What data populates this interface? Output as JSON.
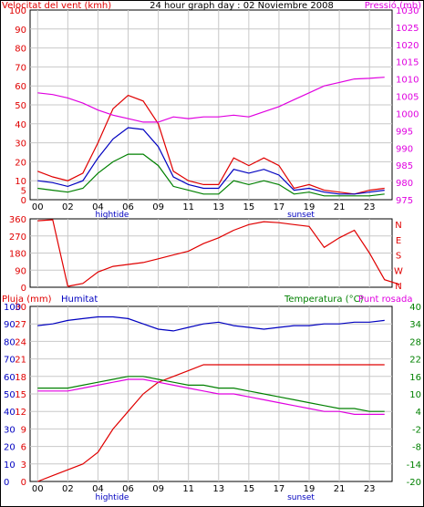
{
  "colors": {
    "red": "#e00000",
    "magenta": "#e000e0",
    "blue": "#0000c0",
    "green": "#008000",
    "grid": "#c8c8c8",
    "axis": "#000000"
  },
  "header": {
    "wind_title": "Velocitat del vent (kmh)",
    "graph_title": "24 hour graph day : 02 Noviembre 2008",
    "pressure_title": "Pressió (mb)"
  },
  "panel3": {
    "rain_title": "Pluja (mm)",
    "humidity_title": "Humitat",
    "temp_title": "Temperatura (°C)",
    "dew_title": "Punt rosada"
  },
  "x_ticks": [
    "00",
    "02",
    "04",
    "06",
    "09",
    "11",
    "13",
    "15",
    "17",
    "19",
    "21",
    "23"
  ],
  "annotations": {
    "hightide": "hightide",
    "sunset": "sunset"
  },
  "chart_data": [
    {
      "type": "line",
      "title": "24 hour graph day : 02 Noviembre 2008",
      "x": [
        0,
        1,
        2,
        3,
        4,
        5,
        6,
        7,
        8,
        9,
        10,
        11,
        12,
        13,
        14,
        15,
        16,
        17,
        18,
        19,
        20,
        21,
        22,
        23
      ],
      "ylabel": "Velocitat del vent (kmh)",
      "ylim": [
        0,
        100
      ],
      "yticks": [
        0,
        5,
        10,
        20,
        30,
        40,
        50,
        60,
        70,
        80,
        90,
        100
      ],
      "y2label": "Pressió (mb)",
      "y2lim": [
        975,
        1030
      ],
      "y2ticks": [
        975,
        980,
        985,
        990,
        995,
        1000,
        1005,
        1010,
        1015,
        1020,
        1025,
        1030
      ],
      "series": [
        {
          "axis": "left",
          "color": "red",
          "values": [
            15,
            12,
            10,
            14,
            30,
            48,
            55,
            52,
            40,
            15,
            10,
            8,
            8,
            22,
            18,
            22,
            18,
            6,
            8,
            5,
            4,
            3,
            5,
            6
          ]
        },
        {
          "axis": "left",
          "color": "blue",
          "values": [
            10,
            9,
            7,
            10,
            22,
            32,
            38,
            37,
            28,
            12,
            8,
            6,
            6,
            16,
            14,
            16,
            13,
            5,
            6,
            4,
            3,
            3,
            4,
            5
          ]
        },
        {
          "axis": "left",
          "color": "green",
          "values": [
            6,
            5,
            4,
            6,
            14,
            20,
            24,
            24,
            18,
            7,
            5,
            3,
            3,
            10,
            8,
            10,
            8,
            3,
            4,
            2,
            2,
            2,
            2,
            3
          ]
        },
        {
          "axis": "right",
          "color": "magenta",
          "values": [
            1006,
            1005.5,
            1004.5,
            1003,
            1001,
            999.5,
            998.5,
            997.5,
            997.5,
            999,
            998.5,
            999,
            999,
            999.5,
            999,
            1000.5,
            1002,
            1004,
            1006,
            1008,
            1009,
            1010,
            1010.2,
            1010.5
          ]
        }
      ]
    },
    {
      "type": "line",
      "ylim": [
        0,
        360
      ],
      "yticks": [
        0,
        90,
        180,
        270,
        360
      ],
      "y2ticks": [
        "N",
        "W",
        "S",
        "E",
        "N"
      ],
      "series": [
        {
          "color": "red",
          "values": [
            350,
            355,
            5,
            20,
            80,
            110,
            120,
            130,
            150,
            170,
            190,
            230,
            260,
            300,
            330,
            345,
            340,
            330,
            320,
            210,
            260,
            300,
            180,
            40,
            15
          ]
        }
      ]
    },
    {
      "type": "line",
      "ylabel": "Pluja (mm)",
      "ylim": [
        0,
        30
      ],
      "yticks": [
        0,
        3,
        6,
        9,
        12,
        15,
        18,
        21,
        24,
        27,
        30
      ],
      "y1label": "Humitat",
      "y1lim": [
        0,
        100
      ],
      "y1ticks": [
        0,
        10,
        20,
        30,
        40,
        50,
        60,
        70,
        80,
        90,
        100
      ],
      "y2label": "Temperatura (°C)",
      "y2lim": [
        -20,
        40
      ],
      "y2ticks": [
        -20,
        -14,
        -8,
        -2,
        4,
        10,
        16,
        22,
        28,
        34,
        40
      ],
      "series": [
        {
          "axis": "left",
          "color": "red",
          "values": [
            0,
            1,
            2,
            3,
            5,
            9,
            12,
            15,
            17,
            18,
            19,
            20,
            20,
            20,
            20,
            20,
            20,
            20,
            20,
            20,
            20,
            20,
            20,
            20
          ]
        },
        {
          "axis": "humidity",
          "color": "blue",
          "values": [
            89,
            90,
            92,
            93,
            94,
            94,
            93,
            90,
            87,
            86,
            88,
            90,
            91,
            89,
            88,
            87,
            88,
            89,
            89,
            90,
            90,
            91,
            91,
            92
          ]
        },
        {
          "axis": "right",
          "color": "green",
          "values": [
            12,
            12,
            12,
            13,
            14,
            15,
            16,
            16,
            15,
            14,
            13,
            13,
            12,
            12,
            11,
            10,
            9,
            8,
            7,
            6,
            5,
            5,
            4,
            4
          ]
        },
        {
          "axis": "right",
          "color": "magenta",
          "values": [
            11,
            11,
            11,
            12,
            13,
            14,
            15,
            15,
            14,
            13,
            12,
            11,
            10,
            10,
            9,
            8,
            7,
            6,
            5,
            4,
            4,
            3,
            3,
            3
          ]
        }
      ]
    }
  ]
}
